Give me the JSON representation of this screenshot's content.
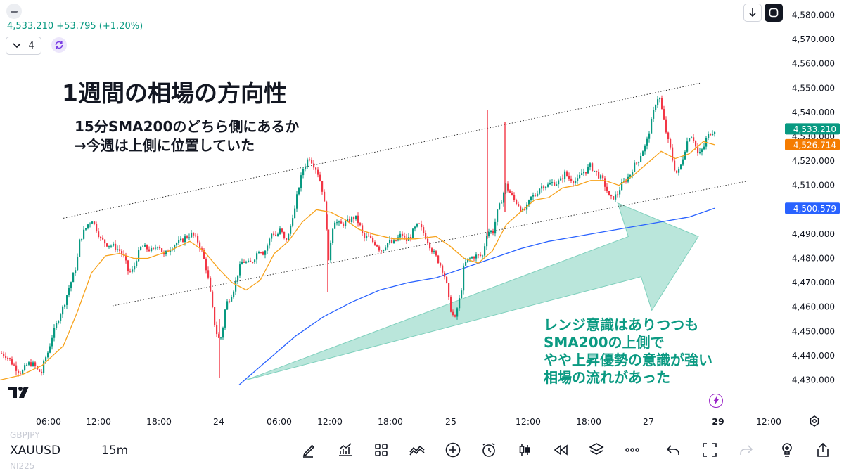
{
  "header": {
    "price_line": "4,533.210 +53.795 (+1.20%)",
    "interval_value": "4"
  },
  "annotations": {
    "headline": "1週間の相場の方向性",
    "sub_line_1": "15分SMA200のどちら側にあるか",
    "sub_line_2": "→今週は上側に位置していた",
    "note_lines": [
      "レンジ意識はありつつも",
      "SMA200の上側で",
      "やや上昇優勢の意識が強い",
      "相場の流れがあった"
    ]
  },
  "bottom_bar": {
    "symbol": "XAUUSD",
    "timeframe": "15m",
    "ghost_symbol_above": "GBPJPY",
    "ghost_symbol_below": "NI225",
    "icons": [
      "draw-pen-icon",
      "indicators-icon",
      "layouts-icon",
      "compare-icon",
      "add-icon",
      "alert-clock-icon",
      "candle-type-icon",
      "replay-icon",
      "layers-icon",
      "more-icon",
      "undo-icon",
      "fullscreen-select-icon",
      "redo-icon",
      "lightbulb-icon",
      "share-icon"
    ]
  },
  "colors": {
    "up": "#089981",
    "down": "#f23645",
    "sma_short": "#f7a21b",
    "sma200": "#2962ff",
    "arrow_fill": "#9fdccd",
    "note_text": "#0b9a82"
  },
  "chart_data": {
    "type": "candlestick",
    "symbol": "XAUUSD",
    "timeframe": "15m",
    "y_axis": {
      "ylim": [
        4423,
        4585
      ],
      "ticks": [
        "4,580.000",
        "4,570.000",
        "4,560.000",
        "4,550.000",
        "4,540.000",
        "4,530.000",
        "4,520.000",
        "4,510.000",
        "4,500.000",
        "4,490.000",
        "4,480.000",
        "4,470.000",
        "4,460.000",
        "4,450.000",
        "4,440.000",
        "4,430.000"
      ]
    },
    "x_axis": {
      "ticks": [
        "06:00",
        "12:00",
        "18:00",
        "24",
        "06:00",
        "12:00",
        "18:00",
        "25",
        "12:00",
        "18:00",
        "27",
        "29",
        "12:00"
      ],
      "bold_tick": "29"
    },
    "price_labels": [
      {
        "text": "4,533.210",
        "value": 4533.21,
        "color": "#089981"
      },
      {
        "text": "4,526.714",
        "value": 4526.714,
        "color": "#f57c00"
      },
      {
        "text": "4,500.579",
        "value": 4500.579,
        "color": "#2962ff"
      }
    ],
    "close_path": [
      [
        0,
        4441
      ],
      [
        8,
        4440
      ],
      [
        16,
        4437
      ],
      [
        24,
        4434
      ],
      [
        30,
        4433
      ],
      [
        36,
        4436
      ],
      [
        42,
        4437
      ],
      [
        48,
        4436
      ],
      [
        52,
        4434
      ],
      [
        58,
        4433
      ],
      [
        62,
        4438
      ],
      [
        68,
        4442
      ],
      [
        72,
        4447
      ],
      [
        78,
        4452
      ],
      [
        84,
        4457
      ],
      [
        90,
        4461
      ],
      [
        96,
        4467
      ],
      [
        102,
        4472
      ],
      [
        108,
        4478
      ],
      [
        112,
        4487
      ],
      [
        118,
        4491
      ],
      [
        124,
        4494
      ],
      [
        130,
        4496
      ],
      [
        136,
        4492
      ],
      [
        142,
        4488
      ],
      [
        150,
        4486
      ],
      [
        160,
        4485
      ],
      [
        170,
        4483
      ],
      [
        176,
        4480
      ],
      [
        182,
        4474
      ],
      [
        188,
        4475
      ],
      [
        194,
        4481
      ],
      [
        200,
        4485
      ],
      [
        208,
        4484
      ],
      [
        216,
        4483
      ],
      [
        224,
        4486
      ],
      [
        232,
        4481
      ],
      [
        240,
        4484
      ],
      [
        248,
        4486
      ],
      [
        256,
        4487
      ],
      [
        264,
        4489
      ],
      [
        272,
        4490
      ],
      [
        280,
        4487
      ],
      [
        286,
        4483
      ],
      [
        292,
        4476
      ],
      [
        296,
        4470
      ],
      [
        300,
        4461
      ],
      [
        304,
        4453
      ],
      [
        308,
        4448
      ],
      [
        312,
        4446
      ],
      [
        316,
        4452
      ],
      [
        320,
        4461
      ],
      [
        326,
        4464
      ],
      [
        332,
        4468
      ],
      [
        338,
        4475
      ],
      [
        344,
        4479
      ],
      [
        350,
        4478
      ],
      [
        356,
        4478
      ],
      [
        362,
        4481
      ],
      [
        368,
        4484
      ],
      [
        374,
        4482
      ],
      [
        380,
        4486
      ],
      [
        386,
        4491
      ],
      [
        392,
        4489
      ],
      [
        398,
        4492
      ],
      [
        404,
        4487
      ],
      [
        410,
        4490
      ],
      [
        414,
        4497
      ],
      [
        418,
        4500
      ],
      [
        422,
        4507
      ],
      [
        426,
        4512
      ],
      [
        430,
        4517
      ],
      [
        434,
        4519
      ],
      [
        438,
        4522
      ],
      [
        442,
        4520
      ],
      [
        446,
        4518
      ],
      [
        450,
        4516
      ],
      [
        454,
        4512
      ],
      [
        458,
        4507
      ],
      [
        462,
        4498
      ],
      [
        466,
        4478
      ],
      [
        470,
        4490
      ],
      [
        474,
        4496
      ],
      [
        480,
        4494
      ],
      [
        486,
        4494
      ],
      [
        492,
        4495
      ],
      [
        498,
        4496
      ],
      [
        504,
        4497
      ],
      [
        510,
        4494
      ],
      [
        516,
        4488
      ],
      [
        522,
        4489
      ],
      [
        528,
        4487
      ],
      [
        534,
        4486
      ],
      [
        540,
        4483
      ],
      [
        546,
        4485
      ],
      [
        552,
        4487
      ],
      [
        558,
        4486
      ],
      [
        564,
        4488
      ],
      [
        570,
        4490
      ],
      [
        576,
        4487
      ],
      [
        582,
        4489
      ],
      [
        588,
        4492
      ],
      [
        594,
        4494
      ],
      [
        600,
        4491
      ],
      [
        606,
        4488
      ],
      [
        612,
        4484
      ],
      [
        618,
        4481
      ],
      [
        624,
        4478
      ],
      [
        630,
        4474
      ],
      [
        634,
        4469
      ],
      [
        638,
        4461
      ],
      [
        642,
        4457
      ],
      [
        646,
        4455
      ],
      [
        650,
        4461
      ],
      [
        654,
        4465
      ],
      [
        658,
        4476
      ],
      [
        662,
        4479
      ],
      [
        668,
        4480
      ],
      [
        674,
        4481
      ],
      [
        680,
        4481
      ],
      [
        686,
        4481
      ],
      [
        690,
        4490
      ],
      [
        694,
        4491
      ],
      [
        700,
        4491
      ],
      [
        706,
        4499
      ],
      [
        712,
        4504
      ],
      [
        718,
        4510
      ],
      [
        724,
        4507
      ],
      [
        730,
        4504
      ],
      [
        736,
        4502
      ],
      [
        742,
        4499
      ],
      [
        748,
        4501
      ],
      [
        754,
        4505
      ],
      [
        760,
        4506
      ],
      [
        766,
        4509
      ],
      [
        772,
        4510
      ],
      [
        778,
        4510
      ],
      [
        784,
        4511
      ],
      [
        790,
        4511
      ],
      [
        796,
        4512
      ],
      [
        802,
        4515
      ],
      [
        808,
        4513
      ],
      [
        814,
        4512
      ],
      [
        820,
        4512
      ],
      [
        826,
        4515
      ],
      [
        832,
        4516
      ],
      [
        838,
        4518
      ],
      [
        844,
        4516
      ],
      [
        850,
        4514
      ],
      [
        856,
        4512
      ],
      [
        862,
        4508
      ],
      [
        866,
        4504
      ],
      [
        870,
        4505
      ],
      [
        876,
        4506
      ],
      [
        882,
        4510
      ],
      [
        888,
        4512
      ],
      [
        894,
        4514
      ],
      [
        900,
        4518
      ],
      [
        906,
        4520
      ],
      [
        912,
        4524
      ],
      [
        918,
        4527
      ],
      [
        924,
        4535
      ],
      [
        928,
        4540
      ],
      [
        932,
        4545
      ],
      [
        936,
        4547
      ],
      [
        940,
        4541
      ],
      [
        944,
        4535
      ],
      [
        948,
        4529
      ],
      [
        952,
        4525
      ],
      [
        956,
        4519
      ],
      [
        960,
        4515
      ],
      [
        964,
        4516
      ],
      [
        968,
        4519
      ],
      [
        972,
        4524
      ],
      [
        976,
        4528
      ],
      [
        980,
        4531
      ],
      [
        984,
        4530
      ],
      [
        988,
        4526
      ],
      [
        992,
        4522
      ],
      [
        996,
        4524
      ],
      [
        1000,
        4526
      ],
      [
        1004,
        4530
      ],
      [
        1010,
        4532
      ],
      [
        1016,
        4533
      ]
    ],
    "spikes": [
      {
        "x": 693,
        "high": 4541,
        "low": 4488
      },
      {
        "x": 718,
        "high": 4536,
        "low": 4499
      },
      {
        "x": 466,
        "high": 4498,
        "low": 4466
      },
      {
        "x": 312,
        "high": 4455,
        "low": 4431
      }
    ],
    "sma_short": [
      [
        0,
        4430
      ],
      [
        30,
        4432
      ],
      [
        60,
        4436
      ],
      [
        90,
        4444
      ],
      [
        110,
        4458
      ],
      [
        130,
        4474
      ],
      [
        150,
        4481
      ],
      [
        170,
        4482
      ],
      [
        190,
        4480
      ],
      [
        210,
        4480
      ],
      [
        240,
        4483
      ],
      [
        270,
        4487
      ],
      [
        290,
        4483
      ],
      [
        310,
        4476
      ],
      [
        330,
        4470
      ],
      [
        350,
        4467
      ],
      [
        370,
        4471
      ],
      [
        390,
        4482
      ],
      [
        410,
        4487
      ],
      [
        430,
        4495
      ],
      [
        450,
        4500
      ],
      [
        470,
        4499
      ],
      [
        490,
        4496
      ],
      [
        510,
        4492
      ],
      [
        530,
        4490
      ],
      [
        560,
        4488
      ],
      [
        590,
        4488
      ],
      [
        620,
        4489
      ],
      [
        640,
        4485
      ],
      [
        660,
        4480
      ],
      [
        680,
        4478
      ],
      [
        700,
        4483
      ],
      [
        720,
        4494
      ],
      [
        740,
        4499
      ],
      [
        760,
        4504
      ],
      [
        780,
        4505
      ],
      [
        800,
        4509
      ],
      [
        820,
        4510
      ],
      [
        840,
        4512
      ],
      [
        860,
        4512
      ],
      [
        880,
        4510
      ],
      [
        900,
        4514
      ],
      [
        920,
        4519
      ],
      [
        940,
        4524
      ],
      [
        960,
        4521
      ],
      [
        980,
        4523
      ],
      [
        1000,
        4528
      ],
      [
        1016,
        4526.7
      ]
    ],
    "sma200": [
      [
        340,
        4428
      ],
      [
        380,
        4438
      ],
      [
        420,
        4448
      ],
      [
        460,
        4456
      ],
      [
        500,
        4462
      ],
      [
        540,
        4467
      ],
      [
        580,
        4470
      ],
      [
        620,
        4472
      ],
      [
        660,
        4476
      ],
      [
        700,
        4480
      ],
      [
        740,
        4484
      ],
      [
        780,
        4487
      ],
      [
        820,
        4489
      ],
      [
        860,
        4491
      ],
      [
        900,
        4493
      ],
      [
        940,
        4495
      ],
      [
        980,
        4497
      ],
      [
        1016,
        4500.6
      ]
    ],
    "channel_lines": [
      {
        "style": "dotted",
        "from": [
          90,
          4496.5
        ],
        "to": [
          995,
          4552
        ]
      },
      {
        "style": "dotted",
        "from": [
          160,
          4460.5
        ],
        "to": [
          1067,
          4512
        ]
      }
    ],
    "arrow": {
      "from": [
        350,
        4430
      ],
      "to": [
        993,
        4489
      ],
      "fill": "#9fdccd"
    }
  }
}
